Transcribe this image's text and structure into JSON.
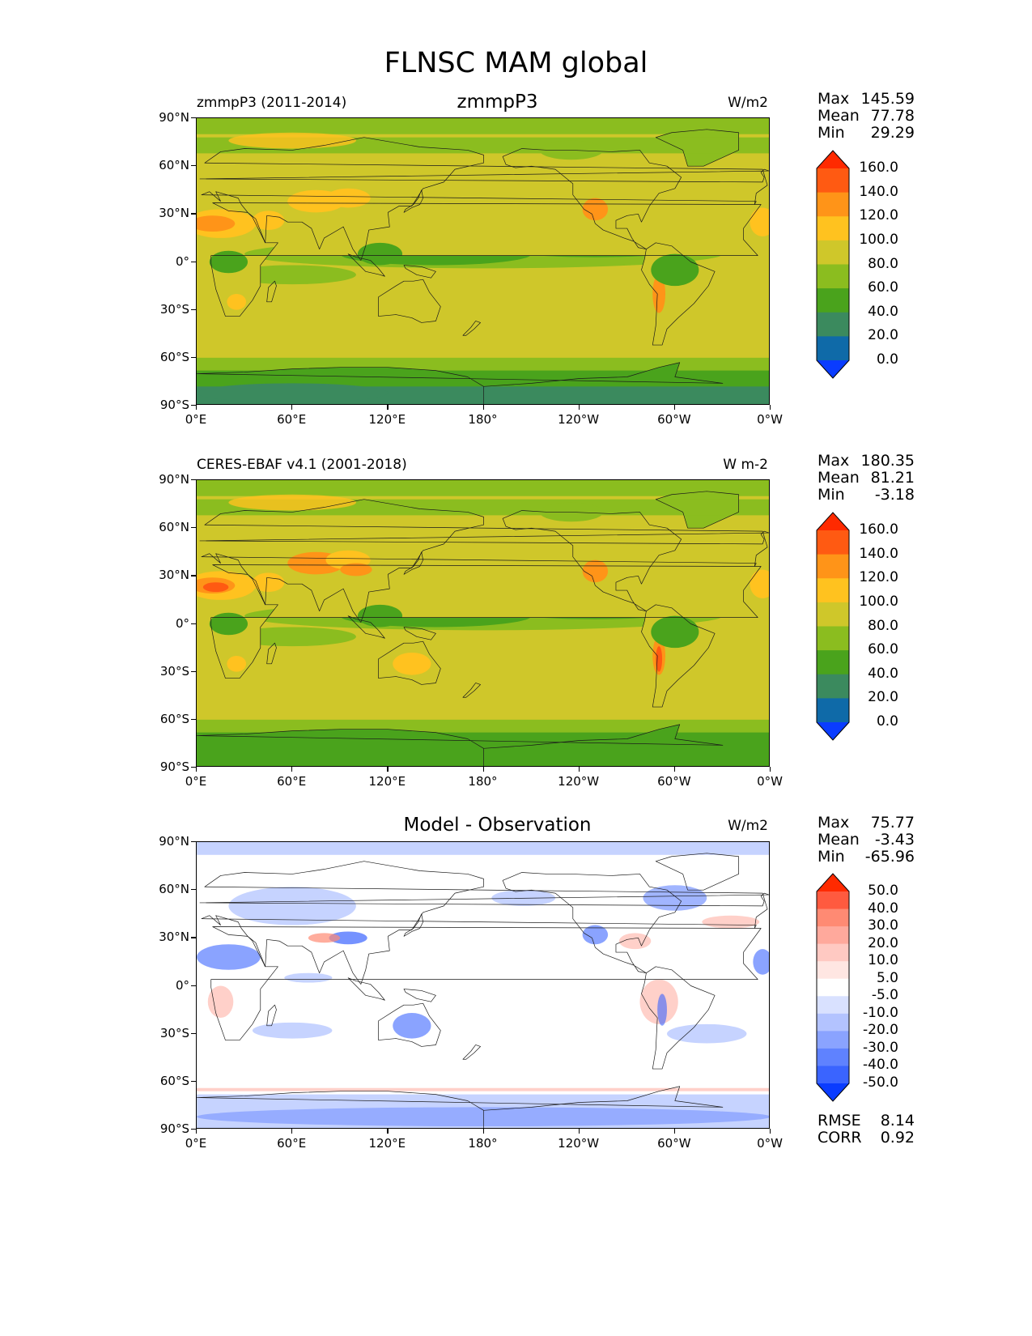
{
  "figure": {
    "title": "FLNSC MAM global"
  },
  "axes": {
    "lat_ticks": [
      "90°N",
      "60°N",
      "30°N",
      "0°",
      "30°S",
      "60°S",
      "90°S"
    ],
    "lon_ticks": [
      "0°E",
      "60°E",
      "120°E",
      "180°",
      "120°W",
      "60°W",
      "0°W"
    ]
  },
  "panels": [
    {
      "left_title": "zmmpP3 (2011-2014)",
      "center_title": "zmmpP3",
      "units": "W/m2",
      "stats": [
        {
          "label": "Max",
          "value": "145.59"
        },
        {
          "label": "Mean",
          "value": "77.78"
        },
        {
          "label": "Min",
          "value": "29.29"
        }
      ],
      "colorbar": {
        "levels": [
          "160.0",
          "140.0",
          "120.0",
          "100.0",
          "80.0",
          "60.0",
          "40.0",
          "20.0",
          "0.0"
        ],
        "colors": [
          "#ff2a00",
          "#ff5a12",
          "#ff9418",
          "#ffc21f",
          "#cfc72a",
          "#8bbd1f",
          "#4aa31c",
          "#3b8a5e",
          "#0f6aa8",
          "#0a3cff"
        ]
      },
      "map_palette": {
        "cold": "#3b8a5e",
        "low": "#4aa31c",
        "mid": "#8bbd1f",
        "base": "#cfc72a",
        "warm": "#ffc21f",
        "hot": "#ff9418",
        "vhot": "#ff5a12"
      }
    },
    {
      "left_title": "CERES-EBAF v4.1 (2001-2018)",
      "center_title": "",
      "units": "W m-2",
      "stats": [
        {
          "label": "Max",
          "value": "180.35"
        },
        {
          "label": "Mean",
          "value": "81.21"
        },
        {
          "label": "Min",
          "value": "-3.18"
        }
      ],
      "colorbar": {
        "levels": [
          "160.0",
          "140.0",
          "120.0",
          "100.0",
          "80.0",
          "60.0",
          "40.0",
          "20.0",
          "0.0"
        ],
        "colors": [
          "#ff2a00",
          "#ff5a12",
          "#ff9418",
          "#ffc21f",
          "#cfc72a",
          "#8bbd1f",
          "#4aa31c",
          "#3b8a5e",
          "#0f6aa8",
          "#0a3cff"
        ]
      },
      "map_palette": {
        "cold": "#3b8a5e",
        "low": "#4aa31c",
        "mid": "#8bbd1f",
        "base": "#cfc72a",
        "warm": "#ffc21f",
        "hot": "#ff9418",
        "vhot": "#ff5a12"
      }
    },
    {
      "left_title": "",
      "center_title": "Model - Observation",
      "units": "W/m2",
      "stats": [
        {
          "label": "Max",
          "value": "75.77"
        },
        {
          "label": "Mean",
          "value": "-3.43"
        },
        {
          "label": "Min",
          "value": "-65.96"
        }
      ],
      "extra_stats": [
        {
          "label": "RMSE",
          "value": "8.14"
        },
        {
          "label": "CORR",
          "value": "0.92"
        }
      ],
      "colorbar": {
        "levels": [
          "50.0",
          "40.0",
          "30.0",
          "20.0",
          "10.0",
          "5.0",
          "-5.0",
          "-10.0",
          "-20.0",
          "-30.0",
          "-40.0",
          "-50.0"
        ],
        "colors": [
          "#ff2a00",
          "#ff5a3f",
          "#ff8a73",
          "#ffa99c",
          "#ffc9c2",
          "#ffe6e2",
          "#ffffff",
          "#d9e1ff",
          "#b3c3ff",
          "#8aa3ff",
          "#5f82ff",
          "#3a64ff",
          "#0a3cff"
        ]
      },
      "map_palette": {
        "base": "#ffffff",
        "lightblue": "#c6d3ff",
        "blue": "#8aa3ff",
        "deepblue": "#3a64ff",
        "lightred": "#ffd0c9",
        "red": "#ff8a73"
      }
    }
  ]
}
